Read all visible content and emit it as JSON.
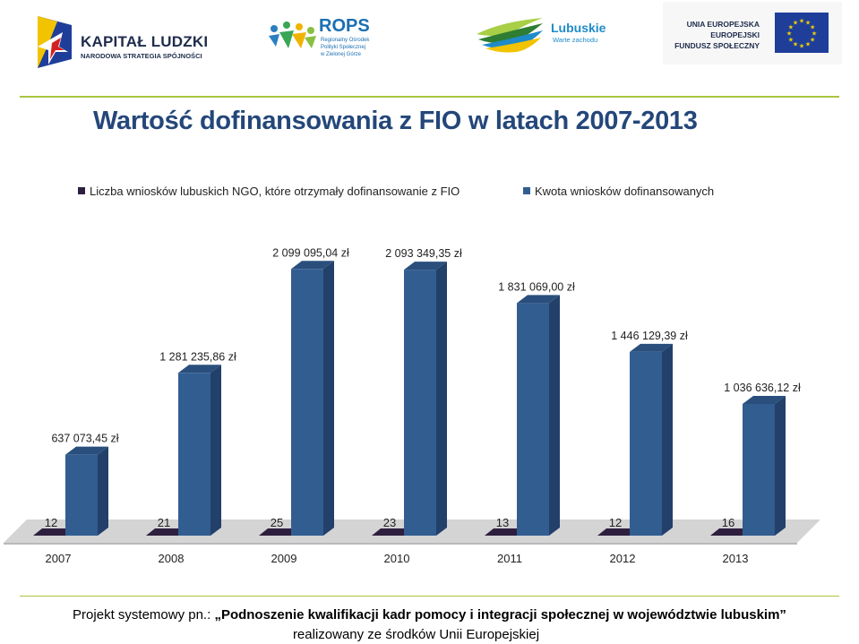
{
  "logos": {
    "kapital_ludzki": {
      "title": "KAPITAŁ LUDZKI",
      "subtitle": "NARODOWA STRATEGIA SPÓJNOŚCI"
    },
    "rops": {
      "title": "ROPS",
      "lines": [
        "Regionalny Ośrodek",
        "Polityki Społecznej",
        "w Zielonej Górze"
      ]
    },
    "lubuskie": {
      "title": "Lubuskie",
      "subtitle": "Warte zachodu"
    },
    "ue": {
      "lines": [
        "UNIA EUROPEJSKA",
        "EUROPEJSKI",
        "FUNDUSZ SPOŁECZNY"
      ]
    }
  },
  "title": "Wartość dofinansowania z FIO w latach 2007-2013",
  "legend": {
    "series1": "Liczba wniosków lubuskich NGO, które otrzymały dofinansowanie z FIO",
    "series2": "Kwota wniosków dofinansowanych"
  },
  "colors": {
    "series1": "#2e1f3f",
    "series2": "#325d91",
    "series2_dark": "#22406a",
    "floor": "#d4d4d4",
    "accent_line": "#a9c43f",
    "title": "#24477a"
  },
  "chart_data": {
    "type": "bar",
    "categories": [
      "2007",
      "2008",
      "2009",
      "2010",
      "2011",
      "2012",
      "2013"
    ],
    "series": [
      {
        "name": "Liczba wniosków lubuskich NGO, które otrzymały dofinansowanie z FIO",
        "values": [
          12,
          21,
          25,
          23,
          13,
          12,
          16
        ],
        "labels": [
          "12",
          "21",
          "25",
          "23",
          "13",
          "12",
          "16"
        ]
      },
      {
        "name": "Kwota wniosków dofinansowanych",
        "values": [
          637073.45,
          1281235.86,
          2099095.04,
          2093349.35,
          1831069.0,
          1446129.39,
          1036636.12
        ],
        "labels": [
          "637 073,45 zł",
          "1 281 235,86 zł",
          "2 099 095,04 zł",
          "2 093 349,35 zł",
          "1 831 069,00 zł",
          "1 446 129,39 zł",
          "1 036 636,12 zł"
        ]
      }
    ],
    "ylim": [
      0,
      2200000
    ],
    "chart_style": "3d clustered columns",
    "legend_position": "top",
    "grid": false
  },
  "footer": {
    "prefix": "Projekt systemowy pn.: ",
    "project_name": "„Podnoszenie kwalifikacji kadr pomocy i integracji społecznej w województwie lubuskim”",
    "line2": "realizowany ze środków Unii Europejskiej"
  }
}
